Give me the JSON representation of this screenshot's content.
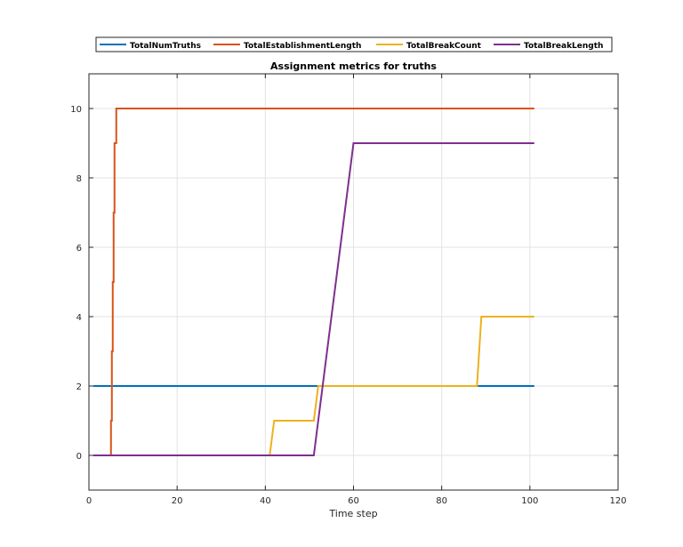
{
  "chart_data": {
    "type": "line",
    "title": "Assignment metrics for truths",
    "xlabel": "Time step",
    "ylabel": "",
    "xlim": [
      0,
      120
    ],
    "ylim": [
      -1,
      11
    ],
    "xticks": [
      0,
      20,
      40,
      60,
      80,
      100,
      120
    ],
    "yticks": [
      0,
      2,
      4,
      6,
      8,
      10
    ],
    "grid": true,
    "legend_placement": "top-outside",
    "series": [
      {
        "name": "TotalNumTruths",
        "color": "#0072BD",
        "x": [
          1,
          101
        ],
        "y": [
          2,
          2
        ]
      },
      {
        "name": "TotalEstablishmentLength",
        "color": "#D95319",
        "x": [
          1,
          5,
          5,
          5.2,
          5.2,
          5.4,
          5.4,
          5.6,
          5.6,
          5.8,
          5.8,
          6,
          6,
          6.2,
          6.2,
          101
        ],
        "y": [
          0,
          0,
          1,
          1,
          3,
          3,
          5,
          5,
          7,
          7,
          9,
          9,
          9,
          9,
          10,
          10
        ]
      },
      {
        "name": "TotalBreakCount",
        "color": "#EDB120",
        "x": [
          1,
          41,
          42,
          51,
          52,
          88,
          89,
          101
        ],
        "y": [
          0,
          0,
          1,
          1,
          2,
          2,
          4,
          4
        ]
      },
      {
        "name": "TotalBreakLength",
        "color": "#7E2F8E",
        "x": [
          1,
          51,
          60,
          101
        ],
        "y": [
          0,
          0,
          9,
          9
        ]
      }
    ]
  }
}
